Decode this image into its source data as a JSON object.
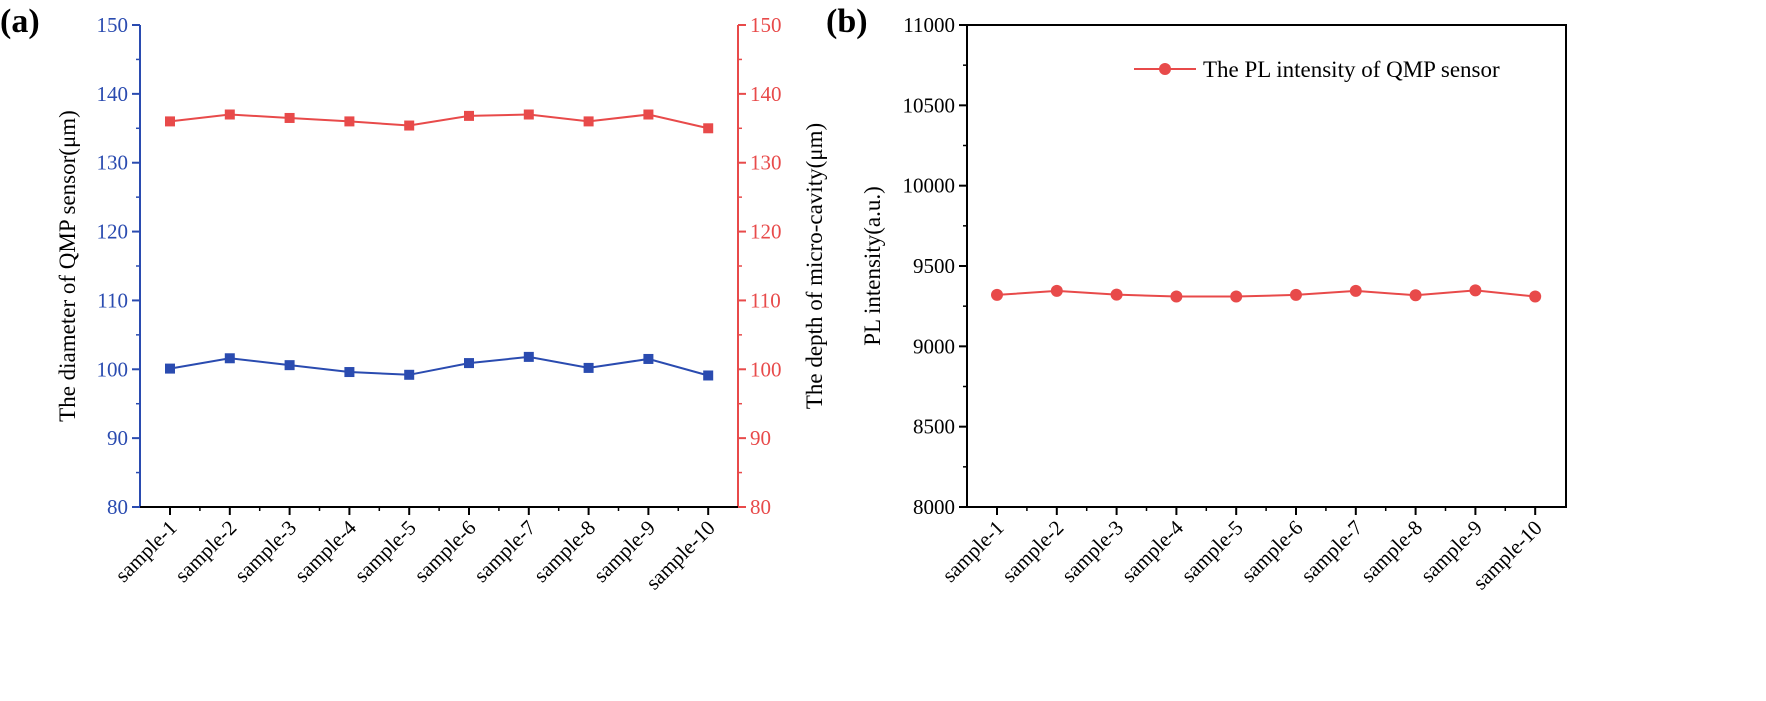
{
  "chart_data": [
    {
      "panel": "(a)",
      "type": "line",
      "categories": [
        "sample-1",
        "sample-2",
        "sample-3",
        "sample-4",
        "sample-5",
        "sample-6",
        "sample-7",
        "sample-8",
        "sample-9",
        "sample-10"
      ],
      "ylabel_left": "The diameter of QMP sensor(μm)",
      "ylabel_right": "The depth of micro-cavity(μm)",
      "ylim_left": [
        80,
        150
      ],
      "ylim_right": [
        80,
        150
      ],
      "yticks": [
        80,
        90,
        100,
        110,
        120,
        130,
        140,
        150
      ],
      "series": [
        {
          "axis": "left",
          "color": "#2a4bb0",
          "marker": "square",
          "values": [
            100.1,
            101.6,
            100.6,
            99.6,
            99.2,
            100.9,
            101.8,
            100.2,
            101.5,
            99.1
          ]
        },
        {
          "axis": "right",
          "color": "#e84a4a",
          "marker": "square",
          "values": [
            136.0,
            137.0,
            136.5,
            136.0,
            135.4,
            136.8,
            137.0,
            136.0,
            137.0,
            135.0
          ]
        }
      ]
    },
    {
      "panel": "(b)",
      "type": "line",
      "categories": [
        "sample-1",
        "sample-2",
        "sample-3",
        "sample-4",
        "sample-5",
        "sample-6",
        "sample-7",
        "sample-8",
        "sample-9",
        "sample-10"
      ],
      "ylabel": "PL intensity(a.u.)",
      "ylim": [
        8000,
        11000
      ],
      "yticks": [
        8000,
        8500,
        9000,
        9500,
        10000,
        10500,
        11000
      ],
      "legend_position": "top-right",
      "series": [
        {
          "name": "The PL intensity of QMP sensor",
          "color": "#e84a4a",
          "marker": "circle",
          "values": [
            9320,
            9345,
            9322,
            9310,
            9310,
            9320,
            9345,
            9318,
            9348,
            9310
          ]
        }
      ]
    }
  ]
}
